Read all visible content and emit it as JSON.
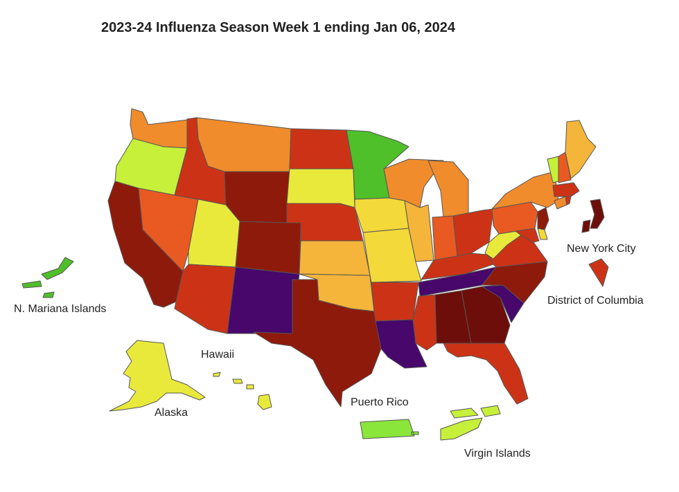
{
  "title": "2023-24 Influenza Season Week 1 ending Jan 06, 2024",
  "palette": {
    "minimal_green": "#4FBF2A",
    "low_green": "#8AE63A",
    "low_lime": "#C6F03A",
    "low_yellow": "#E9E93C",
    "moderate_yellow": "#F3D939",
    "moderate_orange": "#F4B53A",
    "moderate_dark_orange": "#F08C2C",
    "high_orange_red": "#E85A22",
    "high_red": "#CC3316",
    "very_high_dark_red": "#8E1A0C",
    "very_high_maroon": "#6E0E0A",
    "very_high_purple": "#47076B"
  },
  "territory_labels": {
    "nyc": "New York City",
    "dc": "District of Columbia",
    "mariana": "N. Mariana Islands",
    "hawaii": "Hawaii",
    "alaska": "Alaska",
    "puerto_rico": "Puerto Rico",
    "virgin_islands": "Virgin Islands"
  }
}
